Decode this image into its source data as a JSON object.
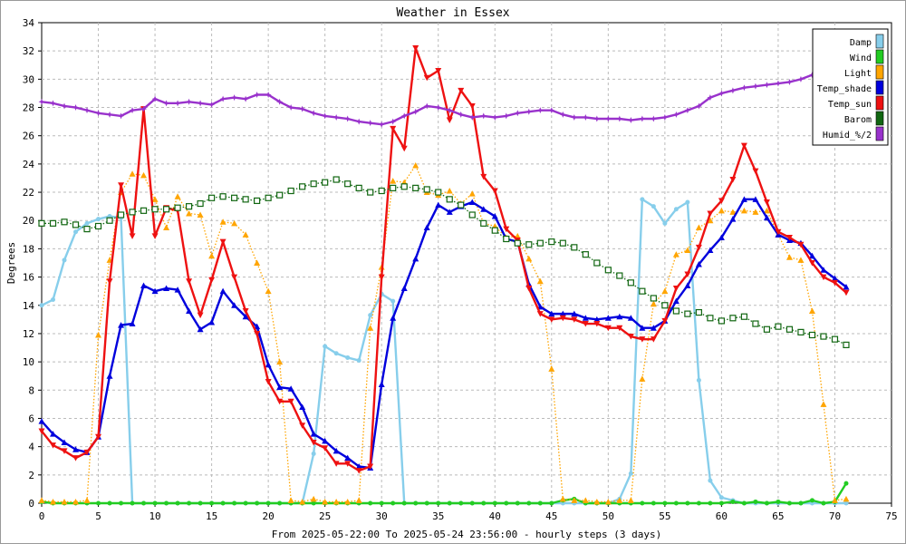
{
  "chart_data": {
    "type": "line",
    "title": "Weather in Essex",
    "xlabel": "From 2025-05-22:00 To 2025-05-24 23:56:00 - hourly steps (3 days)",
    "ylabel": "Degrees",
    "xlim": [
      0,
      75
    ],
    "ylim": [
      0,
      34
    ],
    "x_ticks": [
      0,
      5,
      10,
      15,
      20,
      25,
      30,
      35,
      40,
      45,
      50,
      55,
      60,
      65,
      70,
      75
    ],
    "y_ticks": [
      0,
      2,
      4,
      6,
      8,
      10,
      12,
      14,
      16,
      18,
      20,
      22,
      24,
      26,
      28,
      30,
      32,
      34
    ],
    "grid": true,
    "legend_position": "top-right",
    "series": [
      {
        "name": "Damp",
        "color": "#87ceeb",
        "style": "solid",
        "marker": "circle",
        "values": [
          14.0,
          14.4,
          17.2,
          19.2,
          19.8,
          20.1,
          20.3,
          20.2,
          0,
          0,
          0,
          0,
          0,
          0,
          0,
          0,
          0,
          0,
          0,
          0,
          0,
          0,
          0,
          0,
          3.5,
          11.1,
          10.6,
          10.3,
          10.1,
          13.3,
          14.8,
          14.3,
          0,
          0,
          0,
          0,
          0,
          0,
          0,
          0,
          0,
          0,
          0,
          0,
          0,
          0,
          0,
          0,
          0,
          0,
          0,
          0.3,
          2.1,
          21.5,
          21.0,
          19.8,
          20.8,
          21.3,
          8.7,
          1.6,
          0.4,
          0.2,
          0,
          0,
          0,
          0,
          0,
          0,
          0,
          0,
          0,
          0
        ]
      },
      {
        "name": "Wind",
        "color": "#22cc22",
        "style": "solid",
        "marker": "circle",
        "values": [
          0.1,
          0,
          0,
          0,
          0,
          0,
          0,
          0,
          0,
          0,
          0,
          0,
          0,
          0,
          0,
          0,
          0,
          0,
          0,
          0,
          0,
          0,
          0,
          0,
          0,
          0,
          0,
          0,
          0,
          0,
          0,
          0,
          0,
          0,
          0,
          0,
          0,
          0,
          0,
          0,
          0,
          0,
          0,
          0,
          0,
          0,
          0.2,
          0.3,
          0,
          0,
          0,
          0,
          0,
          0,
          0,
          0,
          0,
          0,
          0,
          0,
          0,
          0.1,
          0,
          0.1,
          0,
          0.1,
          0,
          0,
          0.2,
          0,
          0.1,
          1.4
        ]
      },
      {
        "name": "Light",
        "color": "#ffa500",
        "style": "dotted",
        "marker": "triangle",
        "values": [
          0.2,
          0.1,
          0.1,
          0.1,
          0.2,
          11.9,
          17.2,
          22.0,
          23.3,
          23.2,
          21.5,
          19.5,
          21.7,
          20.5,
          20.4,
          17.5,
          19.9,
          19.8,
          19.0,
          17.0,
          15.0,
          10.0,
          0.2,
          0.1,
          0.3,
          0.1,
          0.1,
          0.1,
          0.2,
          12.4,
          16.7,
          22.8,
          22.7,
          23.9,
          22.0,
          21.8,
          22.1,
          21.2,
          21.9,
          19.8,
          19.6,
          18.8,
          18.9,
          17.3,
          15.7,
          9.5,
          0.3,
          0.2,
          0.2,
          0.1,
          0.1,
          0.2,
          0.2,
          8.8,
          14.1,
          15.0,
          17.6,
          17.9,
          19.5,
          20.0,
          20.7,
          20.6,
          20.7,
          20.6,
          20.7,
          19.0,
          17.4,
          17.2,
          13.6,
          7.0,
          0.2,
          0.3
        ]
      },
      {
        "name": "Temp_shade",
        "color": "#0000dd",
        "style": "solid",
        "marker": "triangle",
        "values": [
          5.8,
          4.9,
          4.3,
          3.8,
          3.6,
          4.7,
          9.0,
          12.6,
          12.7,
          15.4,
          15.0,
          15.2,
          15.1,
          13.6,
          12.3,
          12.8,
          15.0,
          14.0,
          13.2,
          12.5,
          9.8,
          8.2,
          8.1,
          6.8,
          4.9,
          4.4,
          3.7,
          3.2,
          2.6,
          2.5,
          8.4,
          13.1,
          15.2,
          17.3,
          19.5,
          21.1,
          20.6,
          21.0,
          21.3,
          20.8,
          20.3,
          18.7,
          18.5,
          15.5,
          13.9,
          13.4,
          13.4,
          13.4,
          13.1,
          13.0,
          13.1,
          13.2,
          13.1,
          12.4,
          12.4,
          12.9,
          14.3,
          15.4,
          16.9,
          17.9,
          18.8,
          20.1,
          21.5,
          21.5,
          20.2,
          19.0,
          18.6,
          18.4,
          17.5,
          16.5,
          15.9,
          15.3
        ]
      },
      {
        "name": "Temp_sun",
        "color": "#ee1111",
        "style": "solid",
        "marker": "triangle-down",
        "values": [
          5.1,
          4.1,
          3.7,
          3.2,
          3.6,
          4.7,
          15.7,
          22.5,
          18.9,
          27.9,
          18.9,
          20.9,
          20.7,
          15.7,
          13.3,
          15.8,
          18.5,
          16.0,
          13.6,
          12.0,
          8.6,
          7.2,
          7.2,
          5.5,
          4.3,
          3.9,
          2.8,
          2.8,
          2.3,
          2.6,
          16.0,
          26.5,
          25.1,
          32.2,
          30.1,
          30.6,
          27.1,
          29.2,
          28.1,
          23.1,
          22.1,
          19.4,
          18.6,
          15.2,
          13.4,
          13.0,
          13.1,
          13.0,
          12.7,
          12.7,
          12.4,
          12.4,
          11.8,
          11.6,
          11.6,
          12.9,
          15.2,
          16.2,
          18.1,
          20.5,
          21.4,
          22.9,
          25.3,
          23.5,
          21.3,
          19.2,
          18.8,
          18.3,
          17.0,
          16.0,
          15.6,
          14.9
        ]
      },
      {
        "name": "Barom",
        "color": "#116611",
        "style": "dotted",
        "marker": "square",
        "values": [
          19.8,
          19.8,
          19.9,
          19.7,
          19.4,
          19.6,
          20.0,
          20.4,
          20.6,
          20.7,
          20.8,
          20.8,
          20.9,
          21.0,
          21.2,
          21.6,
          21.7,
          21.6,
          21.5,
          21.4,
          21.6,
          21.8,
          22.1,
          22.4,
          22.6,
          22.7,
          22.9,
          22.6,
          22.3,
          22.0,
          22.1,
          22.3,
          22.4,
          22.3,
          22.2,
          22.0,
          21.5,
          21.1,
          20.4,
          19.8,
          19.3,
          18.7,
          18.4,
          18.3,
          18.4,
          18.5,
          18.4,
          18.1,
          17.6,
          17.0,
          16.5,
          16.1,
          15.6,
          15.0,
          14.5,
          14.0,
          13.6,
          13.4,
          13.5,
          13.1,
          12.9,
          13.1,
          13.2,
          12.7,
          12.3,
          12.5,
          12.3,
          12.1,
          11.9,
          11.8,
          11.6,
          11.2
        ]
      },
      {
        "name": "Humid_%/2",
        "color": "#9932cc",
        "style": "solid",
        "marker": "star",
        "values": [
          28.4,
          28.3,
          28.1,
          28.0,
          27.8,
          27.6,
          27.5,
          27.4,
          27.8,
          27.9,
          28.6,
          28.3,
          28.3,
          28.4,
          28.3,
          28.2,
          28.6,
          28.7,
          28.6,
          28.9,
          28.9,
          28.4,
          28.0,
          27.9,
          27.6,
          27.4,
          27.3,
          27.2,
          27.0,
          26.9,
          26.8,
          27.0,
          27.4,
          27.7,
          28.1,
          28.0,
          27.8,
          27.5,
          27.3,
          27.4,
          27.3,
          27.4,
          27.6,
          27.7,
          27.8,
          27.8,
          27.5,
          27.3,
          27.3,
          27.2,
          27.2,
          27.2,
          27.1,
          27.2,
          27.2,
          27.3,
          27.5,
          27.8,
          28.1,
          28.7,
          29.0,
          29.2,
          29.4,
          29.5,
          29.6,
          29.7,
          29.8,
          30.0,
          30.3,
          30.1,
          30.2,
          30.0
        ]
      }
    ]
  }
}
